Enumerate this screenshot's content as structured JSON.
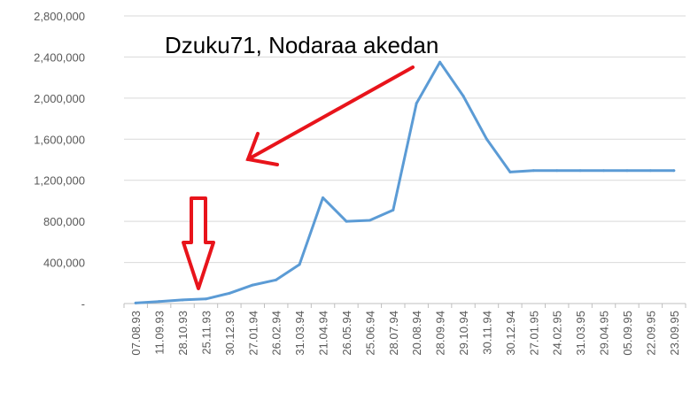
{
  "chart_data": {
    "type": "line",
    "title": "",
    "xlabel": "",
    "ylabel": "",
    "ylim": [
      0,
      2800000
    ],
    "yticks": [
      0,
      400000,
      800000,
      1200000,
      1600000,
      2000000,
      2400000,
      2800000
    ],
    "ytick_labels": [
      "-",
      "400,000",
      "800,000",
      "1,200,000",
      "1,600,000",
      "2,000,000",
      "2,400,000",
      "2,800,000"
    ],
    "grid": true,
    "legend": "none",
    "categories": [
      "07.08.93",
      "11.09.93",
      "28.10.93",
      "25.11.93",
      "30.12.93",
      "27.01.94",
      "26.02.94",
      "31.03.94",
      "21.04.94",
      "26.05.94",
      "25.06.94",
      "28.07.94",
      "20.08.94",
      "28.09.94",
      "29.10.94",
      "30.11.94",
      "30.12.94",
      "27.01.95",
      "24.02.95",
      "31.03.95",
      "29.04.95",
      "05.09.95",
      "22.09.95",
      "23.09.95"
    ],
    "series": [
      {
        "values": [
          5000,
          20000,
          35000,
          45000,
          100000,
          180000,
          230000,
          380000,
          1030000,
          800000,
          810000,
          910000,
          1950000,
          2350000,
          2020000,
          1600000,
          1280000,
          1295000,
          1295000,
          1295000,
          1295000,
          1295000,
          1295000,
          1295000
        ],
        "color": "#5b9bd5"
      }
    ],
    "annotations": [
      {
        "text": "Dzuku71, Nodaraa akedan",
        "color": "#000000"
      }
    ],
    "annotation_arrow_color": "#e8141b"
  }
}
